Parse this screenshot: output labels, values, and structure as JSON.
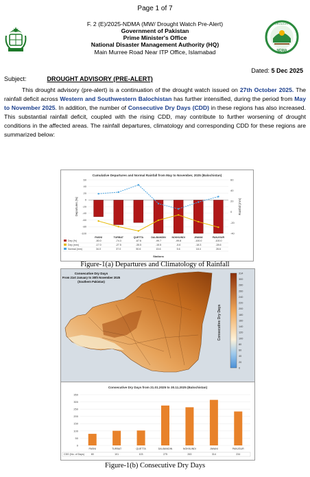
{
  "page_number": "Page 1 of 7",
  "header": {
    "ref": "F. 2 (E)/2025-NDMA (MW/ Drought Watch Pre-Alert)",
    "govt": "Government of Pakistan",
    "office": "Prime Minister's Office",
    "authority": "National Disaster Management Authority (HQ)",
    "address": "Main Murree Road Near ITP Office, Islamabad",
    "logo_right_text_top": "DROUGHT",
    "logo_right_text_bottom": "NDMA"
  },
  "dated_label": "Dated:",
  "dated_value": "5 Dec 2025",
  "subject_label": "Subject:",
  "subject_title": "DROUGHT ADVISORY (PRE-ALERT)",
  "paragraph": {
    "p1": "This drought advisory (pre-alert) is a continuation of the drought watch issued on ",
    "date_hl": "27th October 2025.",
    "p2": " The rainfall deficit across ",
    "region_hl": "Western and Southwestern Balochistan",
    "p3": " has further intensified, during the period from ",
    "period_hl": "May to November 2025",
    "p4": ". In addition, the number of ",
    "cdd_hl": "Consecutive Dry Days (CDD)",
    "p5": " in these regions has also increased. This substantial rainfall deficit, coupled with the rising CDD, may contribute to further worsening of drought conditions in the affected areas. The rainfall departures, climatology and corresponding CDD for these regions are summarized below:"
  },
  "chart_data": [
    {
      "type": "bar",
      "title": "Cumulative Departures and Normal Rainfall from May to November, 2025 (Balochistan)",
      "xlabel": "Stations",
      "ylabel_left": "Departures (%)",
      "ylabel_right": "Rainfall (mm)",
      "ylim_left": [
        -100,
        60
      ],
      "ylim_right": [
        -40,
        60
      ],
      "left_ticks": [
        "60",
        "40",
        "20",
        "0",
        "-20",
        "-40",
        "-60",
        "-80",
        "-100"
      ],
      "right_ticks": [
        "60",
        "40",
        "20",
        "0",
        "-20",
        "-40"
      ],
      "categories": [
        "PASNI",
        "TURBAT",
        "QUETTA",
        "DALBANDIN",
        "NOKKUNDI",
        "JIWANI",
        "PANJGUR"
      ],
      "series": [
        {
          "name": "Dep (%)",
          "values": [
            -50.0,
            -74.3,
            -67.6,
            -99.7,
            -99.8,
            -100.0,
            -100.0
          ],
          "labels": [
            "-50.0",
            "-74.3",
            "-67.6",
            "-99.7",
            "-99.8",
            "-100.0",
            "-100.0"
          ],
          "color": "#b01818"
        },
        {
          "name": "Dep (mm)",
          "values": [
            -17.0,
            -27.5,
            -35.5,
            -15.5,
            -5.6,
            -18.3,
            -28.6
          ],
          "labels": [
            "-17.0",
            "-27.5",
            "-35.5",
            "-15.5",
            "-5.6",
            "-18.3",
            "-28.6"
          ],
          "color": "#e6b800"
        },
        {
          "name": "Normal (mm)",
          "values": [
            34.0,
            37.0,
            50.6,
            15.6,
            5.6,
            18.4,
            28.6
          ],
          "labels": [
            "34.0",
            "37.0",
            "50.6",
            "15.6",
            "5.6",
            "18.4",
            "28.6"
          ],
          "color": "#4aa3df"
        }
      ]
    },
    {
      "type": "bar",
      "title": "Consecutive Dry Days from 21.01.2025 to 30.11.2025 (Balochistan)",
      "ylim": [
        0,
        350
      ],
      "y_ticks": [
        "350",
        "300",
        "250",
        "200",
        "150",
        "100",
        "50",
        "0"
      ],
      "categories": [
        "PASNI",
        "TURBAT",
        "QUETTA",
        "DALBANDIN",
        "NOKKUNDI",
        "JIWANI",
        "PANJGUR"
      ],
      "series": [
        {
          "name": "CDD (No. of Days)",
          "values": [
            80,
            101,
            103,
            275,
            263,
            314,
            234
          ],
          "labels": [
            "80",
            "101",
            "103",
            "275",
            "263",
            "314",
            "234"
          ],
          "color": "#e8822a"
        }
      ]
    }
  ],
  "figure_a_caption": "Figure-1(a) Departures and Climatology of Rainfall",
  "map": {
    "title_1": "Consecutive Dry Days",
    "title_2": "From 21st January to 30th November 2025",
    "title_3": "(Southern Pakistan)",
    "colorbar_label": "Consecutive Dry Days",
    "colorbar_ticks": [
      "314",
      "300",
      "280",
      "260",
      "240",
      "220",
      "200",
      "180",
      "160",
      "140",
      "120",
      "100",
      "80",
      "60",
      "40",
      "20",
      "0"
    ]
  },
  "figure_b_caption": "Figure-1(b) Consecutive Dry Days"
}
